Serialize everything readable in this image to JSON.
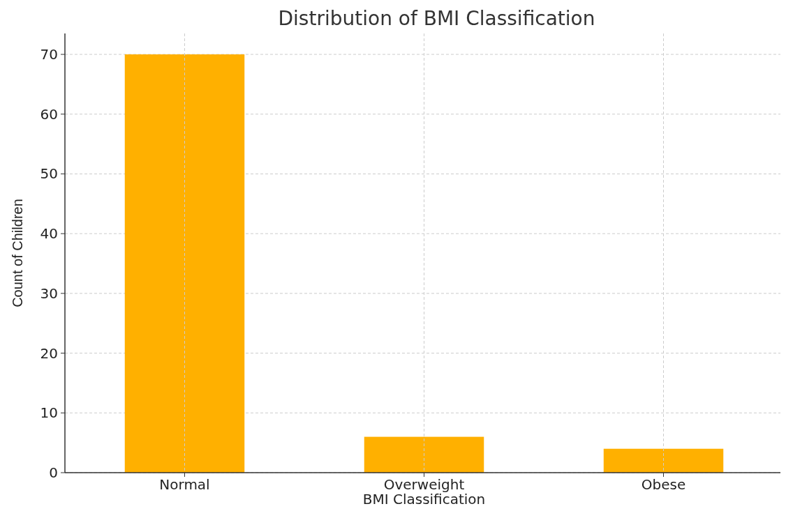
{
  "chart_data": {
    "type": "bar",
    "title": "Distribution of BMI Classification",
    "xlabel": "BMI Classification",
    "ylabel": "Count of Children",
    "categories": [
      "Normal",
      "Overweight",
      "Obese"
    ],
    "values": [
      70,
      6,
      4
    ],
    "color": "#ffb000",
    "ylim": [
      0,
      73.5
    ],
    "yticks": [
      0,
      10,
      20,
      30,
      40,
      50,
      60,
      70
    ],
    "grid": true
  }
}
